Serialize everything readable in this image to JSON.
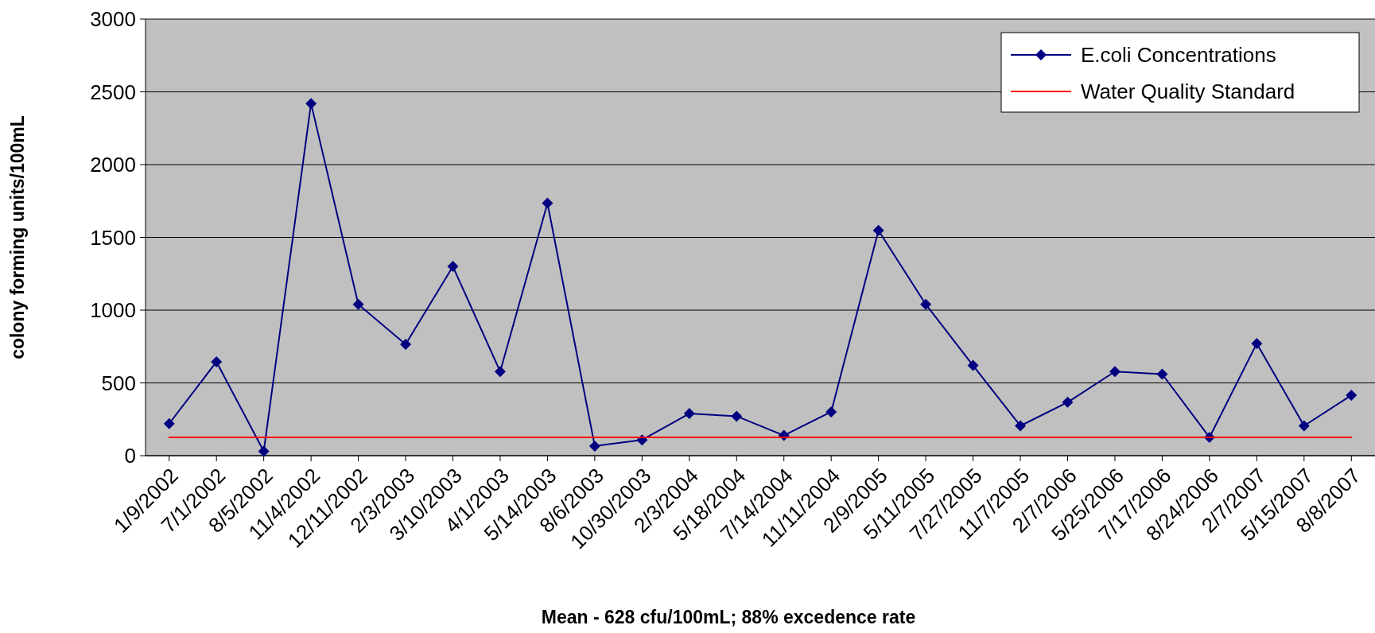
{
  "chart_data": {
    "type": "line",
    "xlabel": "Mean - 628 cfu/100mL; 88% excedence rate",
    "ylabel": "colony forming units/100mL",
    "categories": [
      "1/9/2002",
      "7/1/2002",
      "8/5/2002",
      "11/4/2002",
      "12/11/2002",
      "2/3/2003",
      "3/10/2003",
      "4/1/2003",
      "5/14/2003",
      "8/6/2003",
      "10/30/2003",
      "2/3/2004",
      "5/18/2004",
      "7/14/2004",
      "11/11/2004",
      "2/9/2005",
      "5/11/2005",
      "7/27/2005",
      "11/7/2005",
      "2/7/2006",
      "5/25/2006",
      "7/17/2006",
      "8/24/2006",
      "2/7/2007",
      "5/15/2007",
      "8/8/2007"
    ],
    "series": [
      {
        "name": "E.coli Concentrations",
        "color": "#000080",
        "marker": "diamond",
        "values": [
          220,
          645,
          30,
          2420,
          1040,
          765,
          1300,
          578,
          1735,
          66,
          108,
          289,
          271,
          139,
          301,
          1548,
          1040,
          620,
          205,
          367,
          578,
          560,
          126,
          771,
          205,
          415
        ]
      },
      {
        "name": "Water Quality Standard",
        "color": "#ff0000",
        "marker": "none",
        "values": [
          126,
          126,
          126,
          126,
          126,
          126,
          126,
          126,
          126,
          126,
          126,
          126,
          126,
          126,
          126,
          126,
          126,
          126,
          126,
          126,
          126,
          126,
          126,
          126,
          126,
          126
        ]
      }
    ],
    "ylim": [
      0,
      3000
    ],
    "yticks": [
      0,
      500,
      1000,
      1500,
      2000,
      2500,
      3000
    ],
    "grid": "y",
    "legend": "top right",
    "line_style": "solid"
  }
}
